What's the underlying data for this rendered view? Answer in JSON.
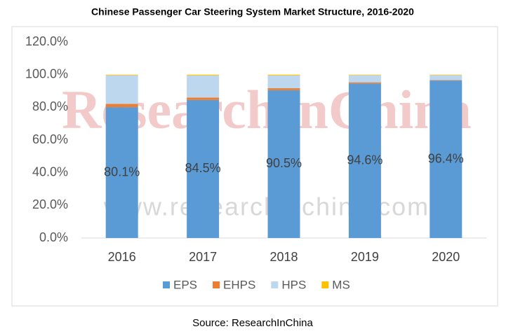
{
  "chart_data": {
    "type": "stacked_bar",
    "title": "Chinese Passenger Car Steering System Market Structure, 2016-2020",
    "categories": [
      "2016",
      "2017",
      "2018",
      "2019",
      "2020"
    ],
    "series": [
      {
        "name": "EPS",
        "color": "#5b9bd5",
        "values": [
          80.1,
          84.5,
          90.5,
          94.6,
          96.4
        ],
        "value_labels": [
          "80.1%",
          "84.5%",
          "90.5%",
          "94.6%",
          "96.4%"
        ]
      },
      {
        "name": "EHPS",
        "color": "#ed7d31",
        "values": [
          2.0,
          1.5,
          1.2,
          0.7,
          0.3
        ]
      },
      {
        "name": "HPS",
        "color": "#bdd7ee",
        "values": [
          17.5,
          13.5,
          7.8,
          4.4,
          3.0
        ]
      },
      {
        "name": "MS",
        "color": "#ffc000",
        "values": [
          0.4,
          0.5,
          0.5,
          0.3,
          0.3
        ]
      }
    ],
    "ylim": [
      0,
      120
    ],
    "yticks": [
      {
        "value": 0,
        "label": "0.0%"
      },
      {
        "value": 20,
        "label": "20.0%"
      },
      {
        "value": 40,
        "label": "40.0%"
      },
      {
        "value": 60,
        "label": "60.0%"
      },
      {
        "value": 80,
        "label": "80.0%"
      },
      {
        "value": 100,
        "label": "100.0%"
      },
      {
        "value": 120,
        "label": "120.0%"
      }
    ],
    "legend": "bottom",
    "watermark": "ResearchInChina",
    "watermark_url": "www.researchinchina.com",
    "source": "Source: ResearchInChina"
  }
}
